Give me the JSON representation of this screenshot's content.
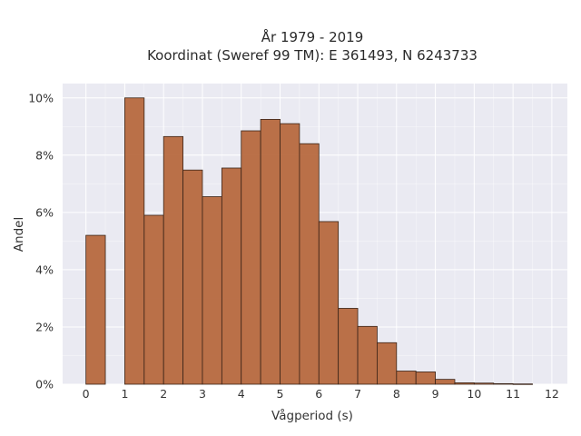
{
  "chart_data": {
    "type": "bar",
    "title_line1": "År 1979 - 2019",
    "title_line2": "Koordinat (Sweref 99 TM): E 361493, N 6243733",
    "xlabel": "Vågperiod (s)",
    "ylabel": "Andel",
    "xlim": [
      -0.6,
      12.4
    ],
    "ylim": [
      0,
      0.105
    ],
    "x_ticks": [
      0,
      1,
      2,
      3,
      4,
      5,
      6,
      7,
      8,
      9,
      10,
      11,
      12
    ],
    "y_ticks": [
      0,
      0.02,
      0.04,
      0.06,
      0.08,
      0.1
    ],
    "y_tick_labels": [
      "0%",
      "2%",
      "4%",
      "6%",
      "8%",
      "10%"
    ],
    "bin_width": 0.5,
    "bins": [
      {
        "start": 0.0,
        "value": 0.052
      },
      {
        "start": 1.0,
        "value": 0.1
      },
      {
        "start": 1.5,
        "value": 0.059
      },
      {
        "start": 2.0,
        "value": 0.0865
      },
      {
        "start": 2.5,
        "value": 0.0748
      },
      {
        "start": 3.0,
        "value": 0.0655
      },
      {
        "start": 3.5,
        "value": 0.0755
      },
      {
        "start": 4.0,
        "value": 0.0885
      },
      {
        "start": 4.5,
        "value": 0.0925
      },
      {
        "start": 5.0,
        "value": 0.091
      },
      {
        "start": 5.5,
        "value": 0.084
      },
      {
        "start": 6.0,
        "value": 0.0568
      },
      {
        "start": 6.5,
        "value": 0.0265
      },
      {
        "start": 7.0,
        "value": 0.0202
      },
      {
        "start": 7.5,
        "value": 0.0145
      },
      {
        "start": 8.0,
        "value": 0.0046
      },
      {
        "start": 8.5,
        "value": 0.0043
      },
      {
        "start": 9.0,
        "value": 0.0017
      },
      {
        "start": 9.5,
        "value": 0.0005
      },
      {
        "start": 10.0,
        "value": 0.0004
      },
      {
        "start": 10.5,
        "value": 0.0002
      },
      {
        "start": 11.0,
        "value": 0.0001
      }
    ],
    "bar_color": "#b5653a",
    "bar_edge_color": "#3a2418",
    "plot_background": "#eaeaf2",
    "grid": true,
    "grid_color": "#ffffff"
  }
}
